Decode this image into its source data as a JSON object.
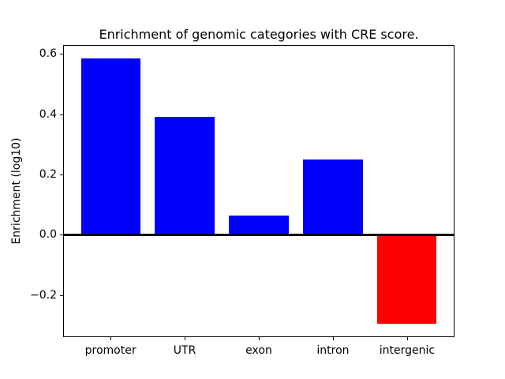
{
  "chart_data": {
    "type": "bar",
    "title": "Enrichment of genomic categories with CRE score.",
    "xlabel": "",
    "ylabel": "Enrichment (log10)",
    "categories": [
      "promoter",
      "UTR",
      "exon",
      "intron",
      "intergenic"
    ],
    "values": [
      0.585,
      0.39,
      0.065,
      0.25,
      -0.295
    ],
    "bar_colors": [
      "#0000ff",
      "#0000ff",
      "#0000ff",
      "#0000ff",
      "#ff0000"
    ],
    "positive_color": "#0000ff",
    "negative_color": "#ff0000",
    "bar_width": 0.8,
    "ylim": [
      -0.339,
      0.629
    ],
    "xlim": [
      -0.64,
      4.64
    ],
    "yticks": [
      0.6,
      0.4,
      0.2,
      0.0,
      -0.2
    ],
    "ytick_labels": [
      "0.6",
      "0.4",
      "0.2",
      "0.0",
      "−0.2"
    ],
    "zero_line": {
      "value": 0.0,
      "color": "#000000"
    },
    "axis_color": "#000000",
    "grid": false,
    "legend": false
  }
}
